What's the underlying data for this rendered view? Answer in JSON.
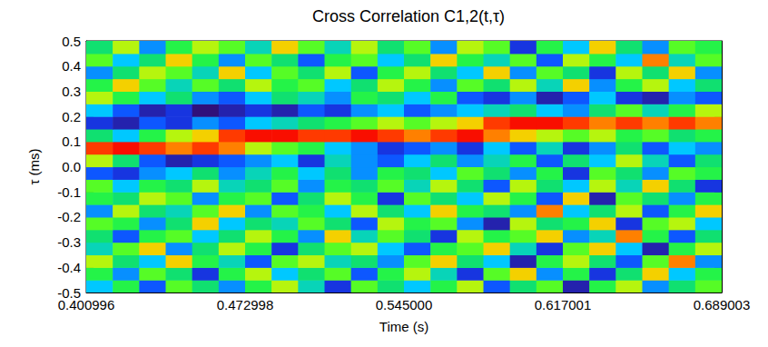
{
  "chart_data": {
    "type": "heatmap",
    "title": "Cross Correlation C1,2(t,τ)",
    "x_label": "Time (s)",
    "y_label": "τ (ms)",
    "xlim": [
      0.400996,
      0.689003
    ],
    "xticks": [
      0.400996,
      0.472998,
      {
        "value": 0.545,
        "label": "0.545000"
      },
      0.617001,
      0.689003
    ],
    "ylim": [
      -0.5,
      0.5
    ],
    "yticks": [
      -0.5,
      -0.4,
      -0.3,
      -0.2,
      -0.1,
      {
        "value": 0,
        "label": "0.0"
      },
      0.1,
      0.2,
      0.3,
      0.4,
      0.5
    ],
    "grid": false,
    "zlim": [
      -1,
      1
    ],
    "cells": {
      "x_edges": [
        0.400996,
        0.413,
        0.425,
        0.437,
        0.449,
        0.461,
        0.473,
        0.485,
        0.497,
        0.509,
        0.521,
        0.533,
        0.545,
        0.557,
        0.569,
        0.581,
        0.593,
        0.605,
        0.617,
        0.629,
        0.641,
        0.653,
        0.665,
        0.677,
        0.689003
      ],
      "y_edges": [
        -0.5,
        -0.45,
        -0.4,
        -0.35,
        -0.3,
        -0.25,
        -0.2,
        -0.15,
        -0.1,
        -0.05,
        0,
        0.05,
        0.1,
        0.15,
        0.2,
        0.25,
        0.3,
        0.35,
        0.4,
        0.45,
        0.5
      ],
      "z": [
        [
          -0.2,
          0.1,
          -0.4,
          0.2,
          0.0,
          -0.3,
          0.1,
          0.3,
          -0.1,
          -0.5,
          0.2,
          0.0,
          -0.2,
          0.1,
          0.3,
          -0.4,
          0.0,
          0.2,
          -0.6,
          0.1,
          0.3,
          -0.3,
          0.0,
          0.2
        ],
        [
          0.1,
          -0.3,
          0.2,
          0.0,
          -0.5,
          0.1,
          0.3,
          -0.2,
          0.0,
          0.2,
          -0.4,
          0.1,
          0.3,
          -0.1,
          -0.5,
          0.2,
          0.4,
          -0.3,
          0.1,
          -0.5,
          0.0,
          0.4,
          -0.2,
          0.1
        ],
        [
          0.3,
          0.0,
          -0.2,
          0.4,
          0.1,
          -0.1,
          -0.4,
          0.2,
          0.3,
          -0.1,
          0.0,
          -0.3,
          0.2,
          0.4,
          0.0,
          -0.2,
          -0.6,
          0.1,
          0.3,
          0.0,
          -0.4,
          0.2,
          0.5,
          -0.3
        ],
        [
          -0.1,
          0.2,
          0.4,
          -0.3,
          0.0,
          0.3,
          0.1,
          -0.5,
          0.0,
          0.2,
          0.3,
          -0.2,
          -0.4,
          0.1,
          0.2,
          0.4,
          -0.1,
          -0.5,
          0.2,
          0.4,
          -0.2,
          -0.6,
          0.1,
          0.3
        ],
        [
          0.0,
          -0.4,
          0.1,
          0.2,
          -0.2,
          0.0,
          0.3,
          0.1,
          -0.3,
          0.4,
          -0.1,
          0.2,
          0.0,
          -0.5,
          0.3,
          0.1,
          0.2,
          0.4,
          -0.3,
          -0.1,
          0.5,
          0.1,
          -0.4,
          0.0
        ],
        [
          0.2,
          0.1,
          -0.3,
          0.0,
          0.4,
          -0.2,
          0.0,
          -0.1,
          0.2,
          0.0,
          -0.4,
          0.3,
          0.1,
          0.2,
          -0.3,
          -0.6,
          0.3,
          0.0,
          0.1,
          0.4,
          -0.5,
          0.2,
          0.3,
          -0.2
        ],
        [
          -0.3,
          0.3,
          0.0,
          -0.1,
          0.2,
          0.4,
          -0.3,
          0.2,
          0.1,
          -0.2,
          0.3,
          0.0,
          -0.2,
          0.4,
          0.1,
          0.0,
          -0.3,
          0.5,
          -0.2,
          0.0,
          0.3,
          -0.4,
          0.1,
          0.4
        ],
        [
          0.1,
          0.0,
          0.3,
          0.2,
          -0.3,
          0.1,
          0.2,
          -0.4,
          0.0,
          0.3,
          0.1,
          -0.5,
          0.2,
          0.0,
          -0.2,
          0.3,
          0.1,
          -0.4,
          0.4,
          -0.6,
          0.2,
          0.0,
          -0.3,
          0.1
        ],
        [
          0.2,
          -0.2,
          0.1,
          0.0,
          0.3,
          -0.1,
          0.0,
          0.2,
          -0.3,
          0.1,
          0.0,
          0.2,
          -0.1,
          0.3,
          0.0,
          -0.4,
          0.3,
          0.0,
          -0.2,
          0.3,
          -0.1,
          0.4,
          0.0,
          -0.5
        ],
        [
          -0.4,
          -0.5,
          -0.3,
          -0.2,
          0.0,
          -0.3,
          -0.1,
          0.1,
          -0.2,
          0.0,
          -0.3,
          0.1,
          0.0,
          -0.2,
          0.2,
          0.0,
          -0.3,
          0.1,
          -0.5,
          0.2,
          0.0,
          -0.3,
          0.2,
          0.1
        ],
        [
          0.3,
          0.0,
          -0.4,
          -0.6,
          -0.5,
          -0.4,
          -0.3,
          -0.2,
          -0.5,
          -0.1,
          -0.3,
          -0.4,
          -0.2,
          0.0,
          -0.3,
          -0.1,
          0.1,
          -0.4,
          0.0,
          -0.2,
          0.3,
          -0.1,
          -0.4,
          0.0
        ],
        [
          0.6,
          0.7,
          0.6,
          0.5,
          0.6,
          0.5,
          0.3,
          0.2,
          0.1,
          -0.2,
          -0.3,
          -0.5,
          -0.4,
          -0.3,
          -0.5,
          -0.2,
          -0.4,
          -0.1,
          -0.5,
          -0.3,
          0.0,
          -0.4,
          -0.2,
          -0.3
        ],
        [
          0.0,
          -0.2,
          0.1,
          0.3,
          0.4,
          0.6,
          0.7,
          0.7,
          0.6,
          0.6,
          0.7,
          0.6,
          0.5,
          0.6,
          0.7,
          0.5,
          0.4,
          0.3,
          0.2,
          0.3,
          0.1,
          0.2,
          0.0,
          0.1
        ],
        [
          -0.5,
          -0.6,
          -0.4,
          -0.5,
          -0.3,
          -0.4,
          -0.2,
          -0.1,
          0.0,
          0.1,
          0.2,
          0.3,
          0.2,
          0.3,
          0.4,
          0.6,
          0.7,
          0.7,
          0.6,
          0.5,
          0.6,
          0.5,
          0.6,
          0.5
        ],
        [
          -0.2,
          -0.4,
          -0.6,
          -0.5,
          -0.7,
          -0.6,
          -0.5,
          -0.6,
          -0.4,
          -0.5,
          -0.3,
          -0.2,
          -0.4,
          -0.3,
          -0.2,
          -0.1,
          0.0,
          -0.2,
          -0.3,
          0.0,
          0.2,
          -0.1,
          0.1,
          0.3
        ],
        [
          0.3,
          0.1,
          -0.2,
          0.0,
          -0.3,
          -0.4,
          -0.2,
          0.0,
          -0.1,
          -0.3,
          0.1,
          0.0,
          -0.2,
          0.1,
          -0.4,
          -0.5,
          -0.3,
          -0.6,
          -0.4,
          -0.2,
          -0.5,
          -0.6,
          -0.3,
          -0.4
        ],
        [
          0.1,
          0.4,
          0.2,
          -0.1,
          0.2,
          0.0,
          0.3,
          0.1,
          0.2,
          -0.2,
          0.0,
          0.3,
          0.1,
          -0.3,
          0.2,
          0.0,
          0.3,
          -0.1,
          0.4,
          -0.3,
          0.1,
          0.3,
          -0.2,
          0.0
        ],
        [
          -0.3,
          0.0,
          0.3,
          0.2,
          -0.1,
          0.4,
          -0.2,
          0.2,
          0.0,
          0.3,
          -0.4,
          0.1,
          0.3,
          0.0,
          -0.2,
          0.4,
          -0.3,
          0.2,
          0.0,
          -0.5,
          0.3,
          0.0,
          0.4,
          -0.3
        ],
        [
          0.2,
          -0.2,
          0.0,
          0.4,
          0.1,
          -0.3,
          0.2,
          0.0,
          -0.4,
          0.1,
          0.2,
          -0.2,
          0.0,
          0.4,
          0.1,
          -0.1,
          0.2,
          -0.4,
          0.3,
          0.1,
          -0.2,
          0.5,
          -0.1,
          0.2
        ],
        [
          0.0,
          0.3,
          -0.3,
          0.1,
          0.3,
          0.2,
          -0.1,
          0.4,
          0.2,
          -0.1,
          0.3,
          0.0,
          0.2,
          -0.3,
          0.3,
          0.2,
          -0.5,
          0.1,
          -0.2,
          0.4,
          0.0,
          -0.3,
          0.2,
          0.1
        ]
      ]
    }
  }
}
